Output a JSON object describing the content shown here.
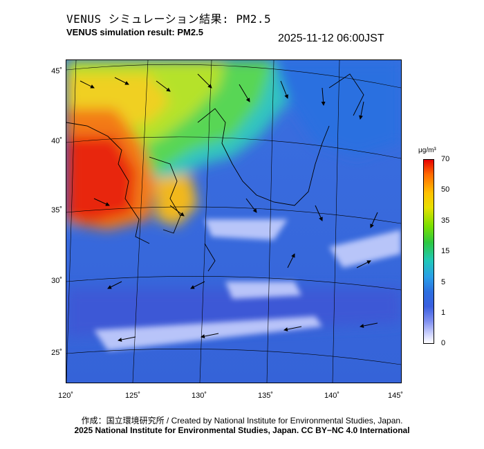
{
  "title_jp": "VENUS シミュレーション結果: PM2.5",
  "title_en": "VENUS simulation result: PM2.5",
  "timestamp": "2025-11-12 06:00JST",
  "lat_labels": [
    "45˚",
    "40˚",
    "35˚",
    "30˚",
    "25˚"
  ],
  "lon_labels": [
    "120˚",
    "125˚",
    "130˚",
    "135˚",
    "140˚",
    "145˚"
  ],
  "colorbar": {
    "unit": "μg/m³",
    "labels": [
      "70",
      "50",
      "35",
      "15",
      "5",
      "1",
      "0"
    ]
  },
  "footer": {
    "credit": "作成：国立環境研究所 / Created by National Institute for Environmental Studies, Japan.",
    "license": "2025 National Institute for Environmental Studies, Japan. CC BY−NC 4.0 International"
  }
}
